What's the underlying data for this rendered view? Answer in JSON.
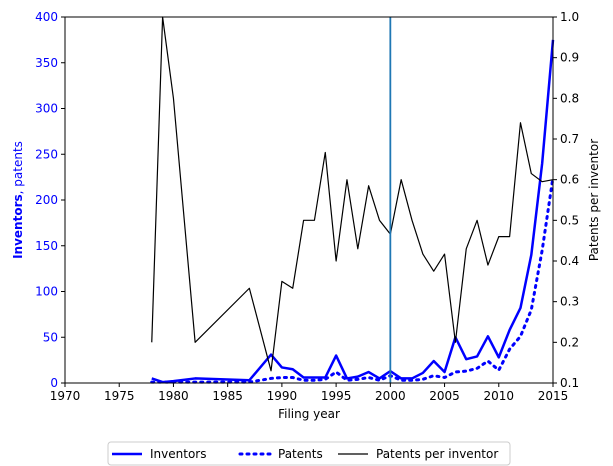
{
  "chart_data": {
    "type": "line",
    "xlabel": "Filing year",
    "ylabel_bold": "Inventors",
    "ylabel_rest": ", patents",
    "y2label": "Patents per inventor",
    "x": [
      1978,
      1979,
      1980,
      1982,
      1987,
      1989,
      1990,
      1991,
      1992,
      1993,
      1994,
      1995,
      1996,
      1997,
      1998,
      1999,
      2000,
      2001,
      2002,
      2003,
      2004,
      2005,
      2006,
      2007,
      2008,
      2009,
      2010,
      2011,
      2012,
      2013,
      2014,
      2015
    ],
    "series": [
      {
        "name": "Inventors",
        "color": "#0000ff",
        "style": "solid",
        "values": [
          5,
          1,
          2,
          5,
          3,
          31,
          17,
          15,
          6,
          6,
          6,
          30,
          5,
          7,
          12,
          5,
          13,
          5,
          5,
          11,
          24,
          12,
          50,
          26,
          29,
          51,
          28,
          58,
          82,
          140,
          240,
          375
        ]
      },
      {
        "name": "Patents",
        "color": "#0000ff",
        "style": "dotted",
        "values": [
          1,
          1,
          1,
          1,
          1,
          5,
          6,
          6,
          3,
          3,
          4,
          12,
          3,
          4,
          6,
          3,
          8,
          3,
          3,
          4,
          8,
          6,
          12,
          13,
          16,
          24,
          14,
          37,
          51,
          80,
          145,
          225
        ]
      },
      {
        "name": "Patents per inventor",
        "color": "#000000",
        "style": "thin",
        "axis": "y2",
        "values": [
          0.2,
          1.0,
          0.8,
          0.2,
          0.333,
          0.13,
          0.35,
          0.333,
          0.5,
          0.5,
          0.667,
          0.4,
          0.6,
          0.43,
          0.585,
          0.5,
          0.466,
          0.6,
          0.5,
          0.417,
          0.375,
          0.417,
          0.2,
          0.43,
          0.5,
          0.39,
          0.46,
          0.46,
          0.74,
          0.615,
          0.595,
          0.6
        ]
      }
    ],
    "vline": {
      "x": 2000,
      "color": "#1f77b4"
    },
    "xlim": [
      1970,
      2015
    ],
    "xticks": [
      1970,
      1975,
      1980,
      1985,
      1990,
      1995,
      2000,
      2005,
      2010,
      2015
    ],
    "ylim": [
      0,
      400
    ],
    "yticks": [
      0,
      50,
      100,
      150,
      200,
      250,
      300,
      350,
      400
    ],
    "ytick_color": "#0000ff",
    "y2lim": [
      0.1,
      1.0
    ],
    "y2ticks": [
      0.1,
      0.2,
      0.3,
      0.4,
      0.5,
      0.6,
      0.7,
      0.8,
      0.9,
      {
        "value": 1.0,
        "label": "1.0"
      }
    ],
    "legend": "bottom"
  }
}
